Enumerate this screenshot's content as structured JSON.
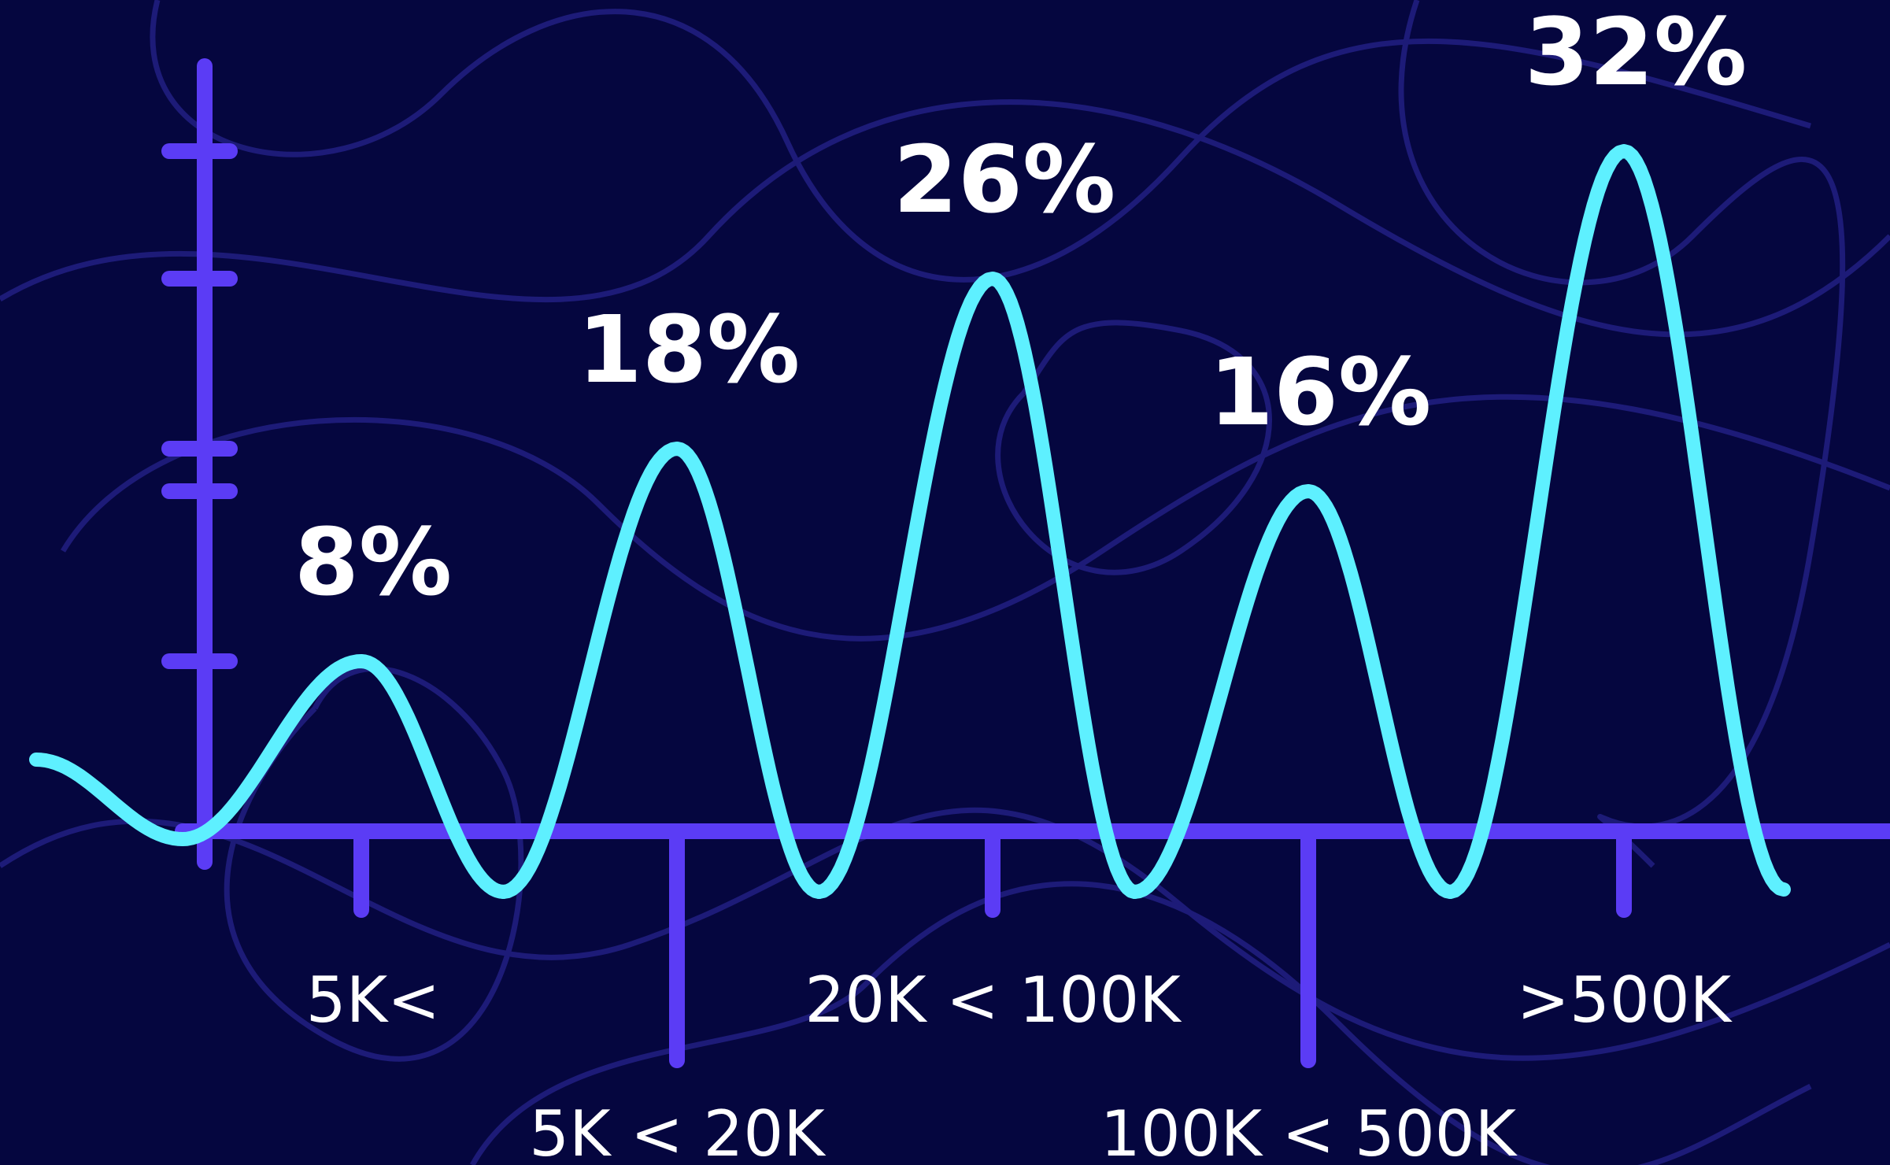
{
  "chart_data": {
    "type": "line",
    "categories": [
      "5K<",
      "5K < 20K",
      "20K < 100K",
      "100K < 500K",
      ">500K"
    ],
    "values": [
      8,
      18,
      26,
      16,
      32
    ],
    "value_labels": [
      "8%",
      "18%",
      "26%",
      "16%",
      "32%"
    ],
    "color": "#5ef0ff",
    "axis_color": "#5b3cf5",
    "ylim": [
      0,
      36
    ],
    "yticks": [
      8,
      16,
      18,
      26,
      32
    ]
  }
}
